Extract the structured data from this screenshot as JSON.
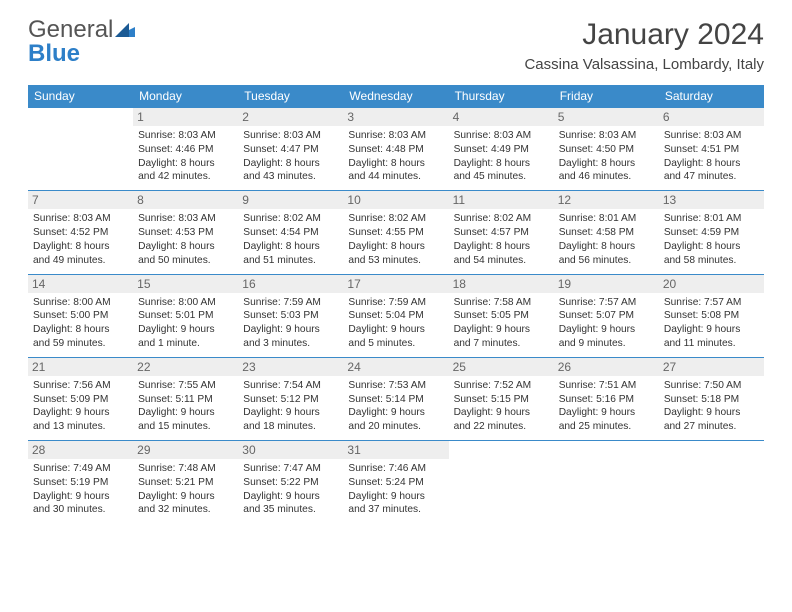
{
  "logo": {
    "part1": "General",
    "part2": "Blue"
  },
  "title": "January 2024",
  "location": "Cassina Valsassina, Lombardy, Italy",
  "colors": {
    "header_bg": "#3a8ac9",
    "header_text": "#ffffff",
    "border": "#3a8ac9",
    "daynum_bg": "#eeeeee",
    "daynum_text": "#666666",
    "body_text": "#333333",
    "logo_gray": "#555555",
    "logo_blue": "#2d7fc8"
  },
  "day_names": [
    "Sunday",
    "Monday",
    "Tuesday",
    "Wednesday",
    "Thursday",
    "Friday",
    "Saturday"
  ],
  "weeks": [
    [
      {
        "n": "",
        "sr": "",
        "ss": "",
        "dl": ""
      },
      {
        "n": "1",
        "sr": "Sunrise: 8:03 AM",
        "ss": "Sunset: 4:46 PM",
        "dl": "Daylight: 8 hours and 42 minutes."
      },
      {
        "n": "2",
        "sr": "Sunrise: 8:03 AM",
        "ss": "Sunset: 4:47 PM",
        "dl": "Daylight: 8 hours and 43 minutes."
      },
      {
        "n": "3",
        "sr": "Sunrise: 8:03 AM",
        "ss": "Sunset: 4:48 PM",
        "dl": "Daylight: 8 hours and 44 minutes."
      },
      {
        "n": "4",
        "sr": "Sunrise: 8:03 AM",
        "ss": "Sunset: 4:49 PM",
        "dl": "Daylight: 8 hours and 45 minutes."
      },
      {
        "n": "5",
        "sr": "Sunrise: 8:03 AM",
        "ss": "Sunset: 4:50 PM",
        "dl": "Daylight: 8 hours and 46 minutes."
      },
      {
        "n": "6",
        "sr": "Sunrise: 8:03 AM",
        "ss": "Sunset: 4:51 PM",
        "dl": "Daylight: 8 hours and 47 minutes."
      }
    ],
    [
      {
        "n": "7",
        "sr": "Sunrise: 8:03 AM",
        "ss": "Sunset: 4:52 PM",
        "dl": "Daylight: 8 hours and 49 minutes."
      },
      {
        "n": "8",
        "sr": "Sunrise: 8:03 AM",
        "ss": "Sunset: 4:53 PM",
        "dl": "Daylight: 8 hours and 50 minutes."
      },
      {
        "n": "9",
        "sr": "Sunrise: 8:02 AM",
        "ss": "Sunset: 4:54 PM",
        "dl": "Daylight: 8 hours and 51 minutes."
      },
      {
        "n": "10",
        "sr": "Sunrise: 8:02 AM",
        "ss": "Sunset: 4:55 PM",
        "dl": "Daylight: 8 hours and 53 minutes."
      },
      {
        "n": "11",
        "sr": "Sunrise: 8:02 AM",
        "ss": "Sunset: 4:57 PM",
        "dl": "Daylight: 8 hours and 54 minutes."
      },
      {
        "n": "12",
        "sr": "Sunrise: 8:01 AM",
        "ss": "Sunset: 4:58 PM",
        "dl": "Daylight: 8 hours and 56 minutes."
      },
      {
        "n": "13",
        "sr": "Sunrise: 8:01 AM",
        "ss": "Sunset: 4:59 PM",
        "dl": "Daylight: 8 hours and 58 minutes."
      }
    ],
    [
      {
        "n": "14",
        "sr": "Sunrise: 8:00 AM",
        "ss": "Sunset: 5:00 PM",
        "dl": "Daylight: 8 hours and 59 minutes."
      },
      {
        "n": "15",
        "sr": "Sunrise: 8:00 AM",
        "ss": "Sunset: 5:01 PM",
        "dl": "Daylight: 9 hours and 1 minute."
      },
      {
        "n": "16",
        "sr": "Sunrise: 7:59 AM",
        "ss": "Sunset: 5:03 PM",
        "dl": "Daylight: 9 hours and 3 minutes."
      },
      {
        "n": "17",
        "sr": "Sunrise: 7:59 AM",
        "ss": "Sunset: 5:04 PM",
        "dl": "Daylight: 9 hours and 5 minutes."
      },
      {
        "n": "18",
        "sr": "Sunrise: 7:58 AM",
        "ss": "Sunset: 5:05 PM",
        "dl": "Daylight: 9 hours and 7 minutes."
      },
      {
        "n": "19",
        "sr": "Sunrise: 7:57 AM",
        "ss": "Sunset: 5:07 PM",
        "dl": "Daylight: 9 hours and 9 minutes."
      },
      {
        "n": "20",
        "sr": "Sunrise: 7:57 AM",
        "ss": "Sunset: 5:08 PM",
        "dl": "Daylight: 9 hours and 11 minutes."
      }
    ],
    [
      {
        "n": "21",
        "sr": "Sunrise: 7:56 AM",
        "ss": "Sunset: 5:09 PM",
        "dl": "Daylight: 9 hours and 13 minutes."
      },
      {
        "n": "22",
        "sr": "Sunrise: 7:55 AM",
        "ss": "Sunset: 5:11 PM",
        "dl": "Daylight: 9 hours and 15 minutes."
      },
      {
        "n": "23",
        "sr": "Sunrise: 7:54 AM",
        "ss": "Sunset: 5:12 PM",
        "dl": "Daylight: 9 hours and 18 minutes."
      },
      {
        "n": "24",
        "sr": "Sunrise: 7:53 AM",
        "ss": "Sunset: 5:14 PM",
        "dl": "Daylight: 9 hours and 20 minutes."
      },
      {
        "n": "25",
        "sr": "Sunrise: 7:52 AM",
        "ss": "Sunset: 5:15 PM",
        "dl": "Daylight: 9 hours and 22 minutes."
      },
      {
        "n": "26",
        "sr": "Sunrise: 7:51 AM",
        "ss": "Sunset: 5:16 PM",
        "dl": "Daylight: 9 hours and 25 minutes."
      },
      {
        "n": "27",
        "sr": "Sunrise: 7:50 AM",
        "ss": "Sunset: 5:18 PM",
        "dl": "Daylight: 9 hours and 27 minutes."
      }
    ],
    [
      {
        "n": "28",
        "sr": "Sunrise: 7:49 AM",
        "ss": "Sunset: 5:19 PM",
        "dl": "Daylight: 9 hours and 30 minutes."
      },
      {
        "n": "29",
        "sr": "Sunrise: 7:48 AM",
        "ss": "Sunset: 5:21 PM",
        "dl": "Daylight: 9 hours and 32 minutes."
      },
      {
        "n": "30",
        "sr": "Sunrise: 7:47 AM",
        "ss": "Sunset: 5:22 PM",
        "dl": "Daylight: 9 hours and 35 minutes."
      },
      {
        "n": "31",
        "sr": "Sunrise: 7:46 AM",
        "ss": "Sunset: 5:24 PM",
        "dl": "Daylight: 9 hours and 37 minutes."
      },
      {
        "n": "",
        "sr": "",
        "ss": "",
        "dl": ""
      },
      {
        "n": "",
        "sr": "",
        "ss": "",
        "dl": ""
      },
      {
        "n": "",
        "sr": "",
        "ss": "",
        "dl": ""
      }
    ]
  ]
}
